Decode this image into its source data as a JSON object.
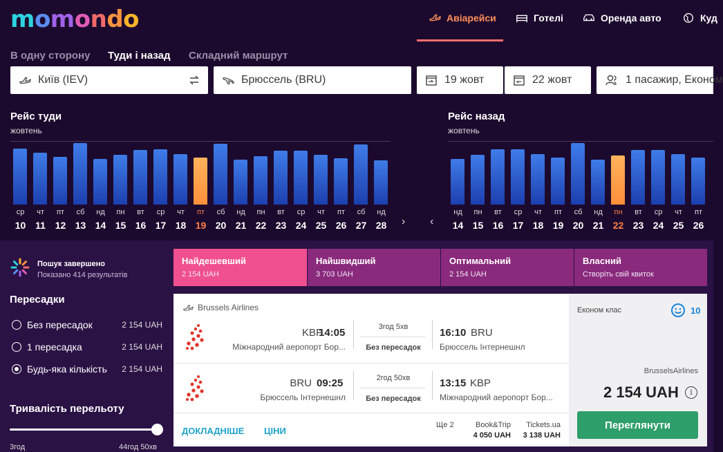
{
  "brand": {
    "logo_letters": [
      "m",
      "o",
      "m",
      "o",
      "n",
      "d",
      "o"
    ]
  },
  "nav": [
    {
      "label": "Авіарейси",
      "icon": "plane-icon",
      "active": true
    },
    {
      "label": "Готелі",
      "icon": "bed-icon",
      "active": false
    },
    {
      "label": "Оренда авто",
      "icon": "car-icon",
      "active": false
    },
    {
      "label": "Куд",
      "icon": "globe-icon",
      "active": false
    }
  ],
  "trip_types": [
    {
      "label": "В одну сторону",
      "active": false
    },
    {
      "label": "Туди і назад",
      "active": true
    },
    {
      "label": "Складний маршрут",
      "active": false
    }
  ],
  "search": {
    "origin": "Київ (IEV)",
    "destination": "Брюссель (BRU)",
    "depart_date": "19 жовт",
    "return_date": "22 жовт",
    "passengers": "1 пасажир, Економ"
  },
  "calendar_out": {
    "title": "Рейс туди",
    "month": "жовтень",
    "days": [
      {
        "dow": "ср",
        "day": "10",
        "level": 0.9
      },
      {
        "dow": "чт",
        "day": "11",
        "level": 0.83
      },
      {
        "dow": "пт",
        "day": "12",
        "level": 0.77
      },
      {
        "dow": "сб",
        "day": "13",
        "level": 0.99
      },
      {
        "dow": "нд",
        "day": "14",
        "level": 0.73
      },
      {
        "dow": "пн",
        "day": "15",
        "level": 0.8
      },
      {
        "dow": "вт",
        "day": "16",
        "level": 0.88
      },
      {
        "dow": "ср",
        "day": "17",
        "level": 0.89
      },
      {
        "dow": "чт",
        "day": "18",
        "level": 0.81
      },
      {
        "dow": "пт",
        "day": "19",
        "level": 0.75,
        "selected": true
      },
      {
        "dow": "сб",
        "day": "20",
        "level": 0.98
      },
      {
        "dow": "нд",
        "day": "21",
        "level": 0.72
      },
      {
        "dow": "пн",
        "day": "22",
        "level": 0.78
      },
      {
        "dow": "вт",
        "day": "23",
        "level": 0.87
      },
      {
        "dow": "ср",
        "day": "24",
        "level": 0.87
      },
      {
        "dow": "чт",
        "day": "25",
        "level": 0.8
      },
      {
        "dow": "пт",
        "day": "26",
        "level": 0.74
      },
      {
        "dow": "сб",
        "day": "27",
        "level": 0.97
      },
      {
        "dow": "нд",
        "day": "28",
        "level": 0.71
      }
    ]
  },
  "calendar_back": {
    "title": "Рейс назад",
    "month": "жовтень",
    "days": [
      {
        "dow": "нд",
        "day": "14",
        "level": 0.73
      },
      {
        "dow": "пн",
        "day": "15",
        "level": 0.8
      },
      {
        "dow": "вт",
        "day": "16",
        "level": 0.89
      },
      {
        "dow": "ср",
        "day": "17",
        "level": 0.89
      },
      {
        "dow": "чт",
        "day": "18",
        "level": 0.81
      },
      {
        "dow": "пт",
        "day": "19",
        "level": 0.75
      },
      {
        "dow": "сб",
        "day": "20",
        "level": 0.99
      },
      {
        "dow": "нд",
        "day": "21",
        "level": 0.72
      },
      {
        "dow": "пн",
        "day": "22",
        "level": 0.79,
        "selected": true
      },
      {
        "dow": "вт",
        "day": "23",
        "level": 0.88
      },
      {
        "dow": "ср",
        "day": "24",
        "level": 0.88
      },
      {
        "dow": "чт",
        "day": "25",
        "level": 0.81
      },
      {
        "dow": "пт",
        "day": "26",
        "level": 0.75
      }
    ]
  },
  "status": {
    "title": "Пошук завершено",
    "subtitle": "Показано 414 результатів"
  },
  "filters": {
    "stops_title": "Пересадки",
    "stops": [
      {
        "label": "Без пересадок",
        "price": "2 154 UAH",
        "checked": false
      },
      {
        "label": "1 пересадка",
        "price": "2 154 UAH",
        "checked": false
      },
      {
        "label": "Будь-яка кількість",
        "price": "2 154 UAH",
        "checked": true
      }
    ],
    "duration_title": "Тривалість перельоту",
    "duration_min": "3год",
    "duration_max": "44год 50хв"
  },
  "sort_tabs": [
    {
      "label": "Найдешевший",
      "value": "2 154 UAH",
      "color": "#f0508f"
    },
    {
      "label": "Найшвидший",
      "value": "3 703 UAH",
      "color": "#8a2a7c"
    },
    {
      "label": "Оптимальний",
      "value": "2 154 UAH",
      "color": "#8a2a7c"
    },
    {
      "label": "Власний",
      "value": "Створіть свій квиток",
      "color": "#8a2a7c"
    }
  ],
  "result": {
    "airline": "Brussels Airlines",
    "legs": [
      {
        "dep_code": "KBP",
        "dep_time": "14:05",
        "dep_airport": "Міжнародний аеропорт Бор...",
        "duration": "3год 5хв",
        "stops": "Без пересадок",
        "arr_time": "16:10",
        "arr_code": "BRU",
        "arr_airport": "Брюссель Інтернешнл"
      },
      {
        "dep_code": "BRU",
        "dep_time": "09:25",
        "dep_airport": "Брюссель Інтернешнл",
        "duration": "2год 50хв",
        "stops": "Без пересадок",
        "arr_time": "13:15",
        "arr_code": "KBP",
        "arr_airport": "Міжнародний аеропорт Бор..."
      }
    ],
    "details_link": "ДОКЛАДНІШЕ",
    "prices_link": "ЦІНИ",
    "more_label": "Ще 2",
    "alternatives": [
      {
        "site": "Book&Trip",
        "price": "4 050 UAH"
      },
      {
        "site": "Tickets.ua",
        "price": "3 138 UAH"
      }
    ],
    "cabin": "Економ клас",
    "score": "10",
    "provider": "BrusselsAirlines",
    "price": "2 154 UAH",
    "view_button": "Переглянути"
  }
}
